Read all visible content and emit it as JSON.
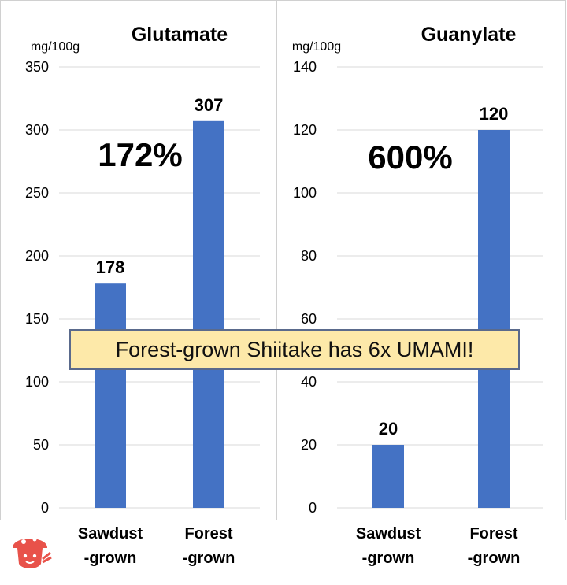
{
  "chart_data": [
    {
      "type": "bar",
      "title": "Glutamate",
      "ylabel": "mg/100g",
      "ylim": [
        0,
        350
      ],
      "yticks": [
        0,
        50,
        100,
        150,
        200,
        250,
        300,
        350
      ],
      "categories": [
        [
          "Sawdust",
          "-grown"
        ],
        [
          "Forest",
          "-grown"
        ]
      ],
      "values": [
        178,
        307
      ],
      "annotation": "172%",
      "bar_color": "#4472c4",
      "grid": true
    },
    {
      "type": "bar",
      "title": "Guanylate",
      "ylabel": "mg/100g",
      "ylim": [
        0,
        140
      ],
      "yticks": [
        0,
        20,
        40,
        60,
        80,
        100,
        120,
        140
      ],
      "categories": [
        [
          "Sawdust",
          "-grown"
        ],
        [
          "Forest",
          "-grown"
        ]
      ],
      "values": [
        20,
        120
      ],
      "annotation": "600%",
      "bar_color": "#4472c4",
      "grid": true
    }
  ],
  "banner": {
    "text": "Forest-grown Shiitake has 6x UMAMI!",
    "background": "#fde9a9",
    "border": "#5a6a8c"
  },
  "logo": {
    "icon": "mushroom-mascot-icon",
    "color": "#e8524a"
  }
}
